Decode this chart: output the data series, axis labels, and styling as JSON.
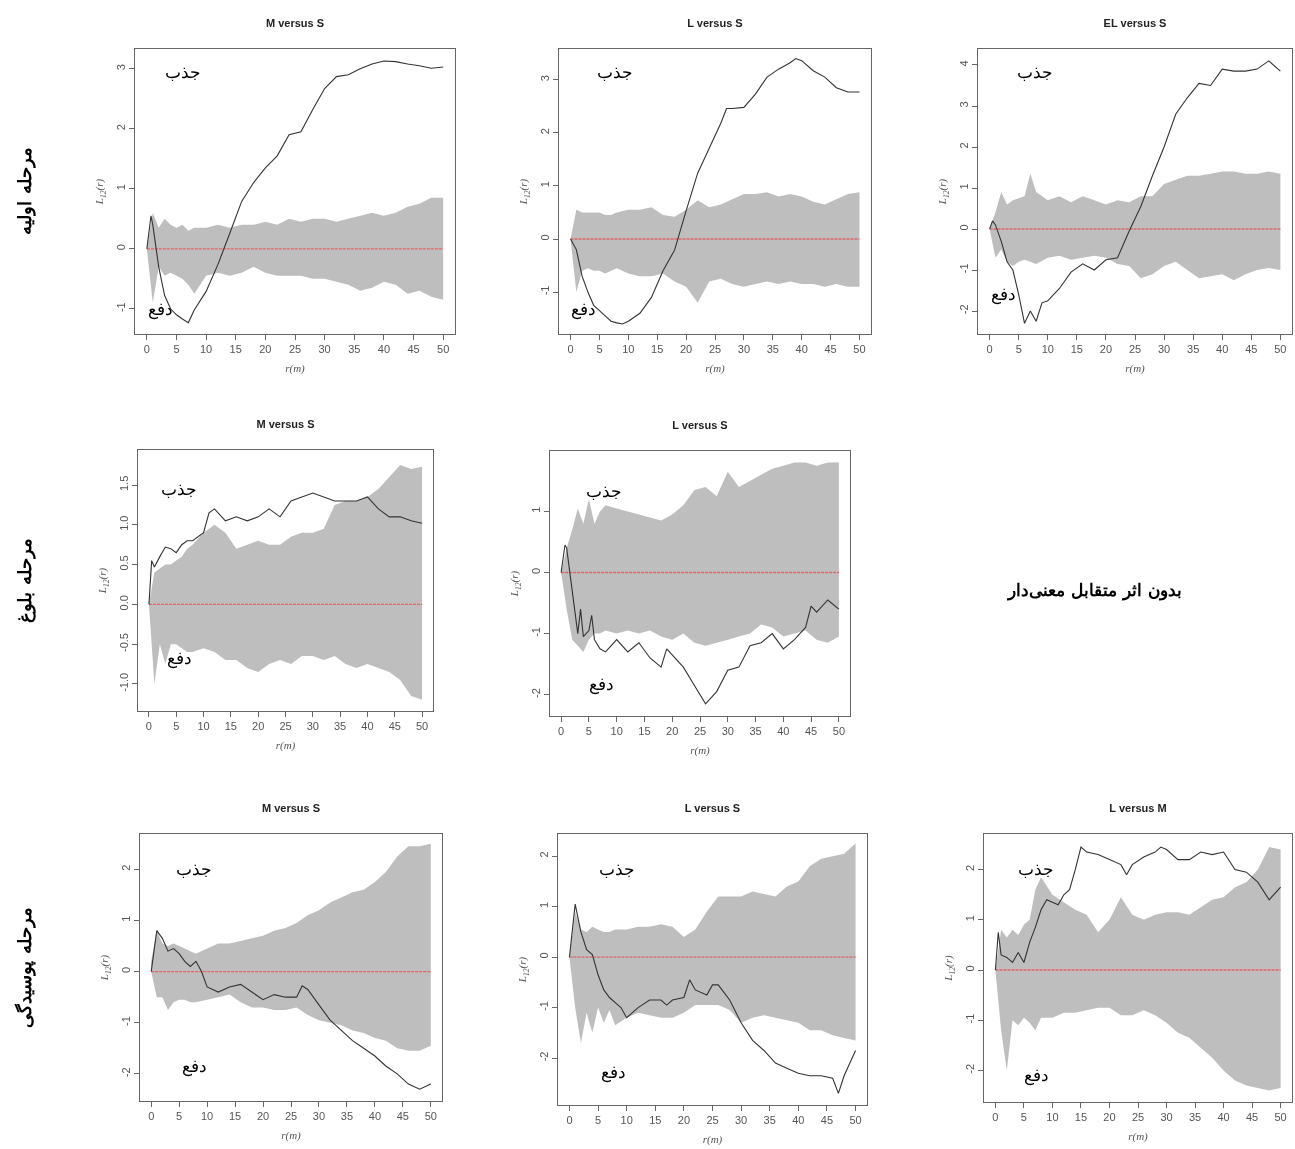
{
  "chart_data": [
    {
      "type": "line",
      "title": "M versus S",
      "xlabel": "r(m)",
      "ylabel": "L$_{12}$(r)",
      "xlim": [
        -2,
        52
      ],
      "ylim": [
        -1.42,
        3.33
      ],
      "xticks": [
        0,
        5,
        10,
        15,
        20,
        25,
        30,
        35,
        40,
        45,
        50
      ],
      "yticks": [
        -1,
        0,
        1,
        2,
        3
      ],
      "annotations": [
        "جذب",
        "دفع",
        "مرحله اولیه"
      ],
      "series": [
        {
          "type": "line",
          "color": "#e06666",
          "line_style": "dashed",
          "x": [
            0,
            1,
            2,
            3,
            4,
            5,
            6,
            7,
            8,
            10,
            12,
            14,
            16,
            18,
            20,
            22,
            24,
            26,
            28,
            30,
            32,
            34,
            36,
            38,
            40,
            42,
            44,
            46,
            48,
            50
          ],
          "values": [
            0,
            0,
            0,
            0,
            0,
            0,
            0,
            0,
            0,
            0,
            0,
            0,
            0,
            0,
            0,
            0,
            0,
            0,
            0,
            0,
            0,
            0,
            0,
            0,
            0,
            0,
            0,
            0,
            0,
            0
          ],
          "upper": [
            0,
            0.6,
            0.35,
            0.5,
            0.4,
            0.35,
            0.4,
            0.3,
            0.35,
            0.35,
            0.4,
            0.35,
            0.4,
            0.4,
            0.45,
            0.4,
            0.5,
            0.45,
            0.5,
            0.5,
            0.45,
            0.5,
            0.55,
            0.6,
            0.55,
            0.6,
            0.7,
            0.75,
            0.85,
            0.85
          ],
          "lower": [
            0,
            -0.9,
            -0.3,
            -0.45,
            -0.4,
            -0.45,
            -0.5,
            -0.6,
            -0.75,
            -0.45,
            -0.4,
            -0.45,
            -0.4,
            -0.3,
            -0.4,
            -0.45,
            -0.45,
            -0.45,
            -0.5,
            -0.5,
            -0.55,
            -0.6,
            -0.7,
            -0.65,
            -0.55,
            -0.6,
            -0.75,
            -0.7,
            -0.8,
            -0.85
          ]
        },
        {
          "type": "line",
          "color": "#333333",
          "line_style": "solid",
          "x": [
            0,
            0.7,
            1,
            2,
            3,
            4,
            5,
            6,
            7,
            8,
            10,
            12,
            14,
            16,
            18,
            20,
            22,
            24,
            26,
            28,
            30,
            32,
            34,
            36,
            38,
            40,
            42,
            44,
            46,
            48,
            50
          ],
          "values": [
            0,
            0.55,
            0.4,
            -0.3,
            -0.78,
            -1.0,
            -1.1,
            -1.17,
            -1.23,
            -1.02,
            -0.71,
            -0.26,
            0.26,
            0.79,
            1.1,
            1.35,
            1.55,
            1.9,
            1.95,
            2.32,
            2.67,
            2.87,
            2.9,
            3.0,
            3.08,
            3.13,
            3.12,
            3.08,
            3.05,
            3.01,
            3.03
          ]
        }
      ]
    },
    {
      "type": "line",
      "title": "L versus S",
      "xlabel": "r(m)",
      "ylabel": "L$_{12}$(r)",
      "xlim": [
        -2,
        52
      ],
      "ylim": [
        -1.79,
        3.58
      ],
      "xticks": [
        0,
        5,
        10,
        15,
        20,
        25,
        30,
        35,
        40,
        45,
        50
      ],
      "yticks": [
        -1,
        0,
        1,
        2,
        3
      ],
      "annotations": [
        "جذب",
        "دفع"
      ],
      "series": [
        {
          "type": "line",
          "color": "#e06666",
          "line_style": "dashed",
          "x": [
            0,
            1,
            2,
            3,
            4,
            5,
            6,
            7,
            8,
            10,
            12,
            14,
            16,
            18,
            20,
            22,
            24,
            26,
            28,
            30,
            32,
            34,
            36,
            38,
            40,
            42,
            44,
            46,
            48,
            50
          ],
          "values": [
            0,
            0,
            0,
            0,
            0,
            0,
            0,
            0,
            0,
            0,
            0,
            0,
            0,
            0,
            0,
            0,
            0,
            0,
            0,
            0,
            0,
            0,
            0,
            0,
            0,
            0,
            0,
            0,
            0,
            0
          ],
          "upper": [
            0,
            0.55,
            0.5,
            0.5,
            0.5,
            0.5,
            0.45,
            0.45,
            0.5,
            0.55,
            0.55,
            0.6,
            0.45,
            0.42,
            0.55,
            0.73,
            0.6,
            0.65,
            0.75,
            0.85,
            0.85,
            0.88,
            0.8,
            0.85,
            0.8,
            0.7,
            0.65,
            0.75,
            0.85,
            0.88
          ],
          "lower": [
            0,
            -1.0,
            -0.6,
            -0.55,
            -0.6,
            -0.6,
            -0.65,
            -0.6,
            -0.55,
            -0.65,
            -0.7,
            -0.7,
            -0.65,
            -0.8,
            -0.9,
            -1.2,
            -0.8,
            -0.75,
            -0.85,
            -0.9,
            -0.85,
            -0.8,
            -0.85,
            -0.8,
            -0.85,
            -0.85,
            -0.9,
            -0.85,
            -0.9,
            -0.9
          ]
        },
        {
          "type": "line",
          "color": "#333333",
          "line_style": "solid",
          "x": [
            0,
            1,
            2,
            3,
            4,
            5,
            6,
            7,
            8,
            9,
            10,
            12,
            14,
            16,
            18,
            20,
            22,
            24,
            26,
            27,
            28,
            30,
            32,
            34,
            36,
            38,
            39,
            40,
            42,
            44,
            46,
            48,
            50
          ],
          "values": [
            0,
            -0.2,
            -0.7,
            -1.0,
            -1.25,
            -1.35,
            -1.45,
            -1.55,
            -1.58,
            -1.6,
            -1.55,
            -1.4,
            -1.1,
            -0.6,
            -0.21,
            0.53,
            1.24,
            1.71,
            2.18,
            2.46,
            2.46,
            2.48,
            2.73,
            3.05,
            3.2,
            3.32,
            3.4,
            3.36,
            3.17,
            3.05,
            2.85,
            2.77,
            2.77
          ]
        }
      ]
    },
    {
      "type": "line",
      "title": "EL versus S",
      "xlabel": "r(m)",
      "ylabel": "L$_{12}$(r)",
      "xlim": [
        -2,
        52
      ],
      "ylim": [
        -2.56,
        4.39
      ],
      "xticks": [
        0,
        5,
        10,
        15,
        20,
        25,
        30,
        35,
        40,
        45,
        50
      ],
      "yticks": [
        -2,
        -1,
        0,
        1,
        2,
        3,
        4
      ],
      "annotations": [
        "جذب",
        "دفع"
      ],
      "series": [
        {
          "type": "line",
          "color": "#e06666",
          "line_style": "dashed",
          "x": [
            0,
            1,
            2,
            3,
            4,
            5,
            6,
            7,
            8,
            10,
            12,
            14,
            16,
            18,
            20,
            22,
            24,
            26,
            28,
            30,
            32,
            34,
            36,
            38,
            40,
            42,
            44,
            46,
            48,
            50
          ],
          "values": [
            0,
            0,
            0,
            0,
            0,
            0,
            0,
            0,
            0,
            0,
            0,
            0,
            0,
            0,
            0,
            0,
            0,
            0,
            0,
            0,
            0,
            0,
            0,
            0,
            0,
            0,
            0,
            0,
            0,
            0
          ],
          "upper": [
            0,
            0.4,
            0.9,
            0.6,
            0.7,
            0.75,
            0.8,
            1.35,
            0.9,
            0.7,
            0.8,
            0.65,
            0.8,
            0.7,
            0.6,
            0.7,
            0.65,
            0.8,
            0.8,
            1.1,
            1.2,
            1.3,
            1.3,
            1.35,
            1.4,
            1.4,
            1.35,
            1.35,
            1.4,
            1.35
          ],
          "lower": [
            0,
            -0.7,
            -0.5,
            -0.8,
            -0.9,
            -0.8,
            -0.75,
            -0.8,
            -0.85,
            -0.7,
            -0.65,
            -0.75,
            -0.7,
            -0.65,
            -0.7,
            -0.85,
            -0.9,
            -1.2,
            -1.1,
            -0.9,
            -0.8,
            -1.0,
            -1.2,
            -1.15,
            -1.1,
            -1.25,
            -1.1,
            -1.0,
            -0.95,
            -1.0
          ]
        },
        {
          "type": "line",
          "color": "#333333",
          "line_style": "solid",
          "x": [
            0,
            0.5,
            1,
            2,
            3,
            4,
            5,
            6,
            7,
            8,
            9,
            10,
            12,
            14,
            16,
            18,
            20,
            22,
            24,
            26,
            28,
            30,
            32,
            34,
            36,
            38,
            40,
            42,
            44,
            46,
            48,
            50
          ],
          "values": [
            0,
            0.2,
            0.1,
            -0.3,
            -0.8,
            -1.0,
            -1.6,
            -2.3,
            -2.0,
            -2.25,
            -1.8,
            -1.75,
            -1.45,
            -1.05,
            -0.85,
            -1.0,
            -0.75,
            -0.7,
            -0.05,
            0.55,
            1.3,
            2.0,
            2.8,
            3.2,
            3.55,
            3.5,
            3.9,
            3.85,
            3.85,
            3.9,
            4.1,
            3.85
          ]
        }
      ]
    },
    {
      "type": "line",
      "title": "M versus S",
      "xlabel": "r(m)",
      "ylabel": "L$_{12}$(r)",
      "xlim": [
        -2,
        52
      ],
      "ylim": [
        -1.34,
        1.94
      ],
      "xticks": [
        0,
        5,
        10,
        15,
        20,
        25,
        30,
        35,
        40,
        45,
        50
      ],
      "yticks": [
        {
          "value": -1,
          "label": "-1.0"
        },
        -0.5,
        {
          "value": 0,
          "label": "0.0"
        },
        0.5,
        {
          "value": 1,
          "label": "1.0"
        },
        1.5
      ],
      "annotations": [
        "جذب",
        "دفع",
        "مرحله بلوغ"
      ],
      "series": [
        {
          "type": "line",
          "color": "#e06666",
          "line_style": "dashed",
          "x": [
            0,
            1,
            2,
            3,
            4,
            5,
            6,
            7,
            8,
            10,
            12,
            14,
            16,
            18,
            20,
            22,
            24,
            26,
            28,
            30,
            32,
            34,
            36,
            38,
            40,
            42,
            44,
            46,
            48,
            50
          ],
          "values": [
            0,
            0,
            0,
            0,
            0,
            0,
            0,
            0,
            0,
            0,
            0,
            0,
            0,
            0,
            0,
            0,
            0,
            0,
            0,
            0,
            0,
            0,
            0,
            0,
            0,
            0,
            0,
            0,
            0,
            0
          ],
          "upper": [
            0,
            0.4,
            0.45,
            0.5,
            0.5,
            0.55,
            0.6,
            0.7,
            0.75,
            0.9,
            1.0,
            0.9,
            0.7,
            0.75,
            0.8,
            0.75,
            0.75,
            0.85,
            0.9,
            0.9,
            0.95,
            1.25,
            1.3,
            1.3,
            1.35,
            1.45,
            1.6,
            1.75,
            1.7,
            1.73
          ],
          "lower": [
            0,
            -1.0,
            -0.5,
            -0.75,
            -0.5,
            -0.5,
            -0.55,
            -0.6,
            -0.6,
            -0.55,
            -0.6,
            -0.7,
            -0.7,
            -0.8,
            -0.85,
            -0.75,
            -0.7,
            -0.75,
            -0.65,
            -0.65,
            -0.7,
            -0.65,
            -0.75,
            -0.8,
            -0.75,
            -0.8,
            -0.85,
            -0.95,
            -1.15,
            -1.2
          ]
        },
        {
          "type": "line",
          "color": "#333333",
          "line_style": "solid",
          "x": [
            0,
            0.5,
            1,
            2,
            3,
            4,
            5,
            6,
            7,
            8,
            10,
            11,
            12,
            14,
            16,
            18,
            20,
            22,
            24,
            26,
            28,
            30,
            32,
            34,
            36,
            38,
            40,
            42,
            44,
            46,
            48,
            50
          ],
          "values": [
            0,
            0.55,
            0.47,
            0.6,
            0.72,
            0.7,
            0.65,
            0.75,
            0.8,
            0.8,
            0.9,
            1.15,
            1.2,
            1.05,
            1.1,
            1.05,
            1.1,
            1.2,
            1.1,
            1.3,
            1.35,
            1.4,
            1.35,
            1.3,
            1.3,
            1.3,
            1.35,
            1.2,
            1.1,
            1.1,
            1.05,
            1.02
          ]
        }
      ]
    },
    {
      "type": "line",
      "title": "L versus S",
      "xlabel": "r(m)",
      "ylabel": "L$_{12}$(r)",
      "xlim": [
        -2,
        52
      ],
      "ylim": [
        -2.35,
        1.99
      ],
      "xticks": [
        0,
        5,
        10,
        15,
        20,
        25,
        30,
        35,
        40,
        45,
        50
      ],
      "yticks": [
        -2,
        -1,
        0,
        1
      ],
      "annotations": [
        "جذب",
        "دفع"
      ],
      "series": [
        {
          "type": "line",
          "color": "#e06666",
          "line_style": "dashed",
          "x": [
            0,
            1,
            2,
            3,
            4,
            5,
            6,
            7,
            8,
            10,
            12,
            14,
            16,
            18,
            20,
            22,
            24,
            26,
            28,
            30,
            32,
            34,
            36,
            38,
            40,
            42,
            44,
            46,
            48,
            50
          ],
          "values": [
            0,
            0,
            0,
            0,
            0,
            0,
            0,
            0,
            0,
            0,
            0,
            0,
            0,
            0,
            0,
            0,
            0,
            0,
            0,
            0,
            0,
            0,
            0,
            0,
            0,
            0,
            0,
            0,
            0,
            0
          ],
          "upper": [
            0,
            0.4,
            0.7,
            1.05,
            0.8,
            1.2,
            0.8,
            1.0,
            1.1,
            1.05,
            1.0,
            0.95,
            0.9,
            0.85,
            0.95,
            1.1,
            1.35,
            1.4,
            1.25,
            1.65,
            1.4,
            1.5,
            1.6,
            1.7,
            1.75,
            1.8,
            1.8,
            1.75,
            1.8,
            1.8
          ],
          "lower": [
            0,
            -0.6,
            -1.1,
            -1.2,
            -1.3,
            -1.1,
            -1.0,
            -1.0,
            -0.95,
            -1.0,
            -0.95,
            -1.0,
            -0.95,
            -1.05,
            -1.1,
            -1.0,
            -1.15,
            -1.2,
            -1.15,
            -1.1,
            -1.05,
            -1.0,
            -0.85,
            -0.9,
            -1.05,
            -1.0,
            -0.95,
            -1.1,
            -1.15,
            -1.05
          ]
        },
        {
          "type": "line",
          "color": "#333333",
          "line_style": "solid",
          "x": [
            0,
            0.7,
            1,
            2,
            3,
            3.5,
            4,
            5,
            5.5,
            6,
            7,
            8,
            10,
            12,
            14,
            16,
            18,
            19,
            20,
            22,
            24,
            26,
            28,
            30,
            32,
            34,
            36,
            38,
            40,
            42,
            44,
            45,
            46,
            48,
            50
          ],
          "values": [
            0,
            0.45,
            0.4,
            -0.3,
            -1.0,
            -0.6,
            -1.05,
            -0.95,
            -0.7,
            -1.1,
            -1.25,
            -1.3,
            -1.1,
            -1.3,
            -1.15,
            -1.4,
            -1.55,
            -1.25,
            -1.35,
            -1.55,
            -1.85,
            -2.15,
            -1.95,
            -1.6,
            -1.55,
            -1.2,
            -1.15,
            -1.0,
            -1.25,
            -1.1,
            -0.9,
            -0.55,
            -0.65,
            -0.45,
            -0.6
          ]
        }
      ]
    },
    {
      "type": "other",
      "annotations": [
        "بدون اثر متقابل معنی‌دار"
      ]
    },
    {
      "type": "line",
      "title": "M versus S",
      "xlabel": "r(m)",
      "ylabel": "L$_{12}$(r)",
      "xlim": [
        -2,
        52
      ],
      "ylim": [
        -2.53,
        2.69
      ],
      "xticks": [
        0,
        5,
        10,
        15,
        20,
        25,
        30,
        35,
        40,
        45,
        50
      ],
      "yticks": [
        -2,
        -1,
        0,
        1,
        2
      ],
      "annotations": [
        "جذب",
        "دفع",
        "مرحله پوسیدگی"
      ],
      "series": [
        {
          "type": "line",
          "color": "#e06666",
          "line_style": "dashed",
          "x": [
            0,
            1,
            2,
            3,
            4,
            5,
            6,
            7,
            8,
            10,
            12,
            14,
            16,
            18,
            20,
            22,
            24,
            26,
            28,
            30,
            32,
            34,
            36,
            38,
            40,
            42,
            44,
            46,
            48,
            50
          ],
          "values": [
            0,
            0,
            0,
            0,
            0,
            0,
            0,
            0,
            0,
            0,
            0,
            0,
            0,
            0,
            0,
            0,
            0,
            0,
            0,
            0,
            0,
            0,
            0,
            0,
            0,
            0,
            0,
            0,
            0,
            0
          ],
          "upper": [
            0.2,
            0.8,
            0.55,
            0.5,
            0.55,
            0.5,
            0.45,
            0.4,
            0.35,
            0.45,
            0.55,
            0.55,
            0.6,
            0.65,
            0.7,
            0.8,
            0.85,
            0.95,
            1.1,
            1.2,
            1.35,
            1.45,
            1.55,
            1.6,
            1.75,
            1.95,
            2.25,
            2.45,
            2.45,
            2.5
          ],
          "lower": [
            0,
            -0.5,
            -0.5,
            -0.75,
            -0.6,
            -0.55,
            -0.55,
            -0.6,
            -0.6,
            -0.55,
            -0.5,
            -0.45,
            -0.6,
            -0.7,
            -0.7,
            -0.75,
            -0.75,
            -0.7,
            -0.85,
            -0.95,
            -1.0,
            -1.05,
            -1.15,
            -1.2,
            -1.3,
            -1.35,
            -1.5,
            -1.55,
            -1.55,
            -1.45
          ]
        },
        {
          "type": "line",
          "color": "#333333",
          "line_style": "solid",
          "x": [
            0,
            1,
            2,
            3,
            4,
            5,
            6,
            7,
            8,
            9,
            10,
            12,
            14,
            16,
            18,
            20,
            22,
            24,
            26,
            27,
            28,
            30,
            32,
            34,
            36,
            38,
            40,
            42,
            44,
            46,
            48,
            50
          ],
          "values": [
            0,
            0.8,
            0.65,
            0.4,
            0.45,
            0.35,
            0.2,
            0.1,
            0.2,
            0,
            -0.3,
            -0.4,
            -0.3,
            -0.25,
            -0.4,
            -0.55,
            -0.45,
            -0.5,
            -0.5,
            -0.28,
            -0.35,
            -0.65,
            -0.95,
            -1.15,
            -1.35,
            -1.5,
            -1.65,
            -1.85,
            -2.0,
            -2.2,
            -2.3,
            -2.2
          ]
        }
      ]
    },
    {
      "type": "line",
      "title": "L versus S",
      "xlabel": "r(m)",
      "ylabel": "L$_{12}$(r)",
      "xlim": [
        -2,
        52
      ],
      "ylim": [
        -2.93,
        2.44
      ],
      "xticks": [
        0,
        5,
        10,
        15,
        20,
        25,
        30,
        35,
        40,
        45,
        50
      ],
      "yticks": [
        -2,
        -1,
        0,
        1,
        2
      ],
      "annotations": [
        "جذب",
        "دفع"
      ],
      "series": [
        {
          "type": "line",
          "color": "#e06666",
          "line_style": "dashed",
          "x": [
            0,
            1,
            2,
            3,
            4,
            5,
            6,
            7,
            8,
            10,
            12,
            14,
            16,
            18,
            20,
            22,
            24,
            26,
            28,
            30,
            32,
            34,
            36,
            38,
            40,
            42,
            44,
            46,
            48,
            50
          ],
          "values": [
            0,
            0,
            0,
            0,
            0,
            0,
            0,
            0,
            0,
            0,
            0,
            0,
            0,
            0,
            0,
            0,
            0,
            0,
            0,
            0,
            0,
            0,
            0,
            0,
            0,
            0,
            0,
            0,
            0,
            0
          ],
          "upper": [
            0,
            0.9,
            0.55,
            0.5,
            0.6,
            0.55,
            0.5,
            0.5,
            0.55,
            0.55,
            0.6,
            0.6,
            0.65,
            0.6,
            0.4,
            0.55,
            0.9,
            1.2,
            1.2,
            1.2,
            1.3,
            1.25,
            1.2,
            1.4,
            1.5,
            1.8,
            1.95,
            2.0,
            2.05,
            2.25
          ],
          "lower": [
            0,
            -1.0,
            -1.7,
            -1.1,
            -1.5,
            -1.0,
            -1.3,
            -1.05,
            -1.35,
            -1.2,
            -1.1,
            -1.15,
            -1.2,
            -1.2,
            -1.1,
            -0.95,
            -0.95,
            -0.95,
            -1.05,
            -1.3,
            -1.2,
            -1.15,
            -1.2,
            -1.25,
            -1.3,
            -1.45,
            -1.45,
            -1.55,
            -1.6,
            -1.65
          ]
        },
        {
          "type": "line",
          "color": "#333333",
          "line_style": "solid",
          "x": [
            0,
            1,
            2,
            3,
            4,
            5,
            6,
            7,
            8,
            9,
            10,
            12,
            14,
            16,
            17,
            18,
            20,
            21,
            22,
            24,
            25,
            26,
            28,
            30,
            32,
            34,
            36,
            38,
            40,
            42,
            44,
            46,
            47,
            48,
            50
          ],
          "values": [
            0,
            1.05,
            0.5,
            0.15,
            0.05,
            -0.35,
            -0.65,
            -0.8,
            -0.9,
            -1.0,
            -1.2,
            -1.0,
            -0.85,
            -0.85,
            -0.95,
            -0.85,
            -0.8,
            -0.45,
            -0.65,
            -0.75,
            -0.55,
            -0.55,
            -0.85,
            -1.3,
            -1.65,
            -1.85,
            -2.1,
            -2.2,
            -2.3,
            -2.35,
            -2.35,
            -2.4,
            -2.7,
            -2.35,
            -1.85
          ]
        }
      ]
    },
    {
      "type": "line",
      "title": "L versus M",
      "xlabel": "r(m)",
      "ylabel": "L$_{12}$(r)",
      "xlim": [
        -2,
        52
      ],
      "ylim": [
        -2.63,
        2.71
      ],
      "xticks": [
        0,
        5,
        10,
        15,
        20,
        25,
        30,
        35,
        40,
        45,
        50
      ],
      "yticks": [
        -2,
        -1,
        0,
        1,
        2
      ],
      "annotations": [
        "جذب",
        "دفع"
      ],
      "series": [
        {
          "type": "line",
          "color": "#e06666",
          "line_style": "dashed",
          "x": [
            0,
            1,
            2,
            3,
            4,
            5,
            6,
            7,
            8,
            10,
            12,
            14,
            16,
            18,
            20,
            22,
            24,
            26,
            28,
            30,
            32,
            34,
            36,
            38,
            40,
            42,
            44,
            46,
            48,
            50
          ],
          "values": [
            0,
            0,
            0,
            0,
            0,
            0,
            0,
            0,
            0,
            0,
            0,
            0,
            0,
            0,
            0,
            0,
            0,
            0,
            0,
            0,
            0,
            0,
            0,
            0,
            0,
            0,
            0,
            0,
            0,
            0
          ],
          "upper": [
            0,
            0.8,
            0.65,
            0.8,
            0.7,
            0.9,
            1.0,
            1.6,
            1.85,
            1.5,
            1.35,
            1.2,
            1.1,
            0.75,
            1.0,
            1.45,
            1.1,
            1.0,
            1.1,
            1.15,
            1.15,
            1.1,
            1.25,
            1.4,
            1.45,
            1.65,
            1.75,
            2.0,
            2.45,
            2.4
          ],
          "lower": [
            0,
            -1.2,
            -2.0,
            -1.0,
            -1.1,
            -0.95,
            -1.05,
            -1.2,
            -0.95,
            -0.95,
            -0.85,
            -0.85,
            -0.8,
            -0.75,
            -0.75,
            -0.9,
            -0.9,
            -0.8,
            -0.9,
            -1.05,
            -1.25,
            -1.35,
            -1.55,
            -1.75,
            -2.0,
            -2.2,
            -2.3,
            -2.35,
            -2.4,
            -2.35
          ]
        },
        {
          "type": "line",
          "color": "#333333",
          "line_style": "solid",
          "x": [
            0,
            0.5,
            1,
            2,
            3,
            4,
            5,
            6,
            7,
            8,
            9,
            10,
            11,
            12,
            13,
            14,
            15,
            16,
            18,
            20,
            22,
            23,
            24,
            26,
            28,
            29,
            30,
            32,
            34,
            36,
            38,
            40,
            42,
            44,
            46,
            48,
            50
          ],
          "values": [
            0,
            0.75,
            0.3,
            0.25,
            0.15,
            0.35,
            0.15,
            0.55,
            0.85,
            1.2,
            1.4,
            1.35,
            1.3,
            1.5,
            1.6,
            2.0,
            2.45,
            2.35,
            2.3,
            2.2,
            2.1,
            1.9,
            2.1,
            2.25,
            2.35,
            2.45,
            2.4,
            2.2,
            2.2,
            2.35,
            2.3,
            2.35,
            2.0,
            1.95,
            1.75,
            1.4,
            1.65
          ]
        }
      ]
    }
  ]
}
